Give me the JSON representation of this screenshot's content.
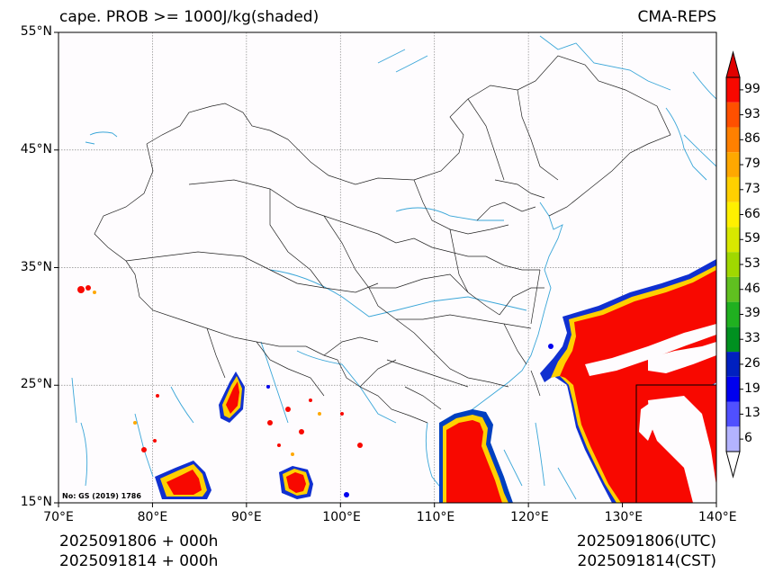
{
  "header": {
    "title": "cape. PROB >= 1000J/kg(shaded)",
    "model": "CMA-REPS"
  },
  "map": {
    "projection": "lat-lon",
    "lon_range": [
      70,
      140
    ],
    "lat_range": [
      15,
      55
    ],
    "lon_ticks": [
      "70°E",
      "80°E",
      "90°E",
      "100°E",
      "110°E",
      "120°E",
      "130°E",
      "140°E"
    ],
    "lat_ticks": [
      "55°N",
      "45°N",
      "35°N",
      "25°N",
      "15°N"
    ],
    "grid": true,
    "inset_south_china_sea": true,
    "note": "No: GS (2019) 1786"
  },
  "colorbar": {
    "levels": [
      "6",
      "13",
      "19",
      "26",
      "33",
      "39",
      "46",
      "53",
      "59",
      "66",
      "73",
      "79",
      "86",
      "93",
      "99"
    ],
    "colors": [
      "#b3b3ff",
      "#5050ff",
      "#0000ee",
      "#0020c0",
      "#009020",
      "#20b020",
      "#60c020",
      "#a0d800",
      "#d8e800",
      "#fff000",
      "#ffd000",
      "#ffa800",
      "#ff8000",
      "#ff5000",
      "#f80800"
    ],
    "extend": "both"
  },
  "footer": {
    "init_utc": "2025091806  +  000h",
    "init_cst": "2025091814  +  000h",
    "valid_utc": "2025091806(UTC)",
    "valid_cst": "2025091814(CST)"
  }
}
